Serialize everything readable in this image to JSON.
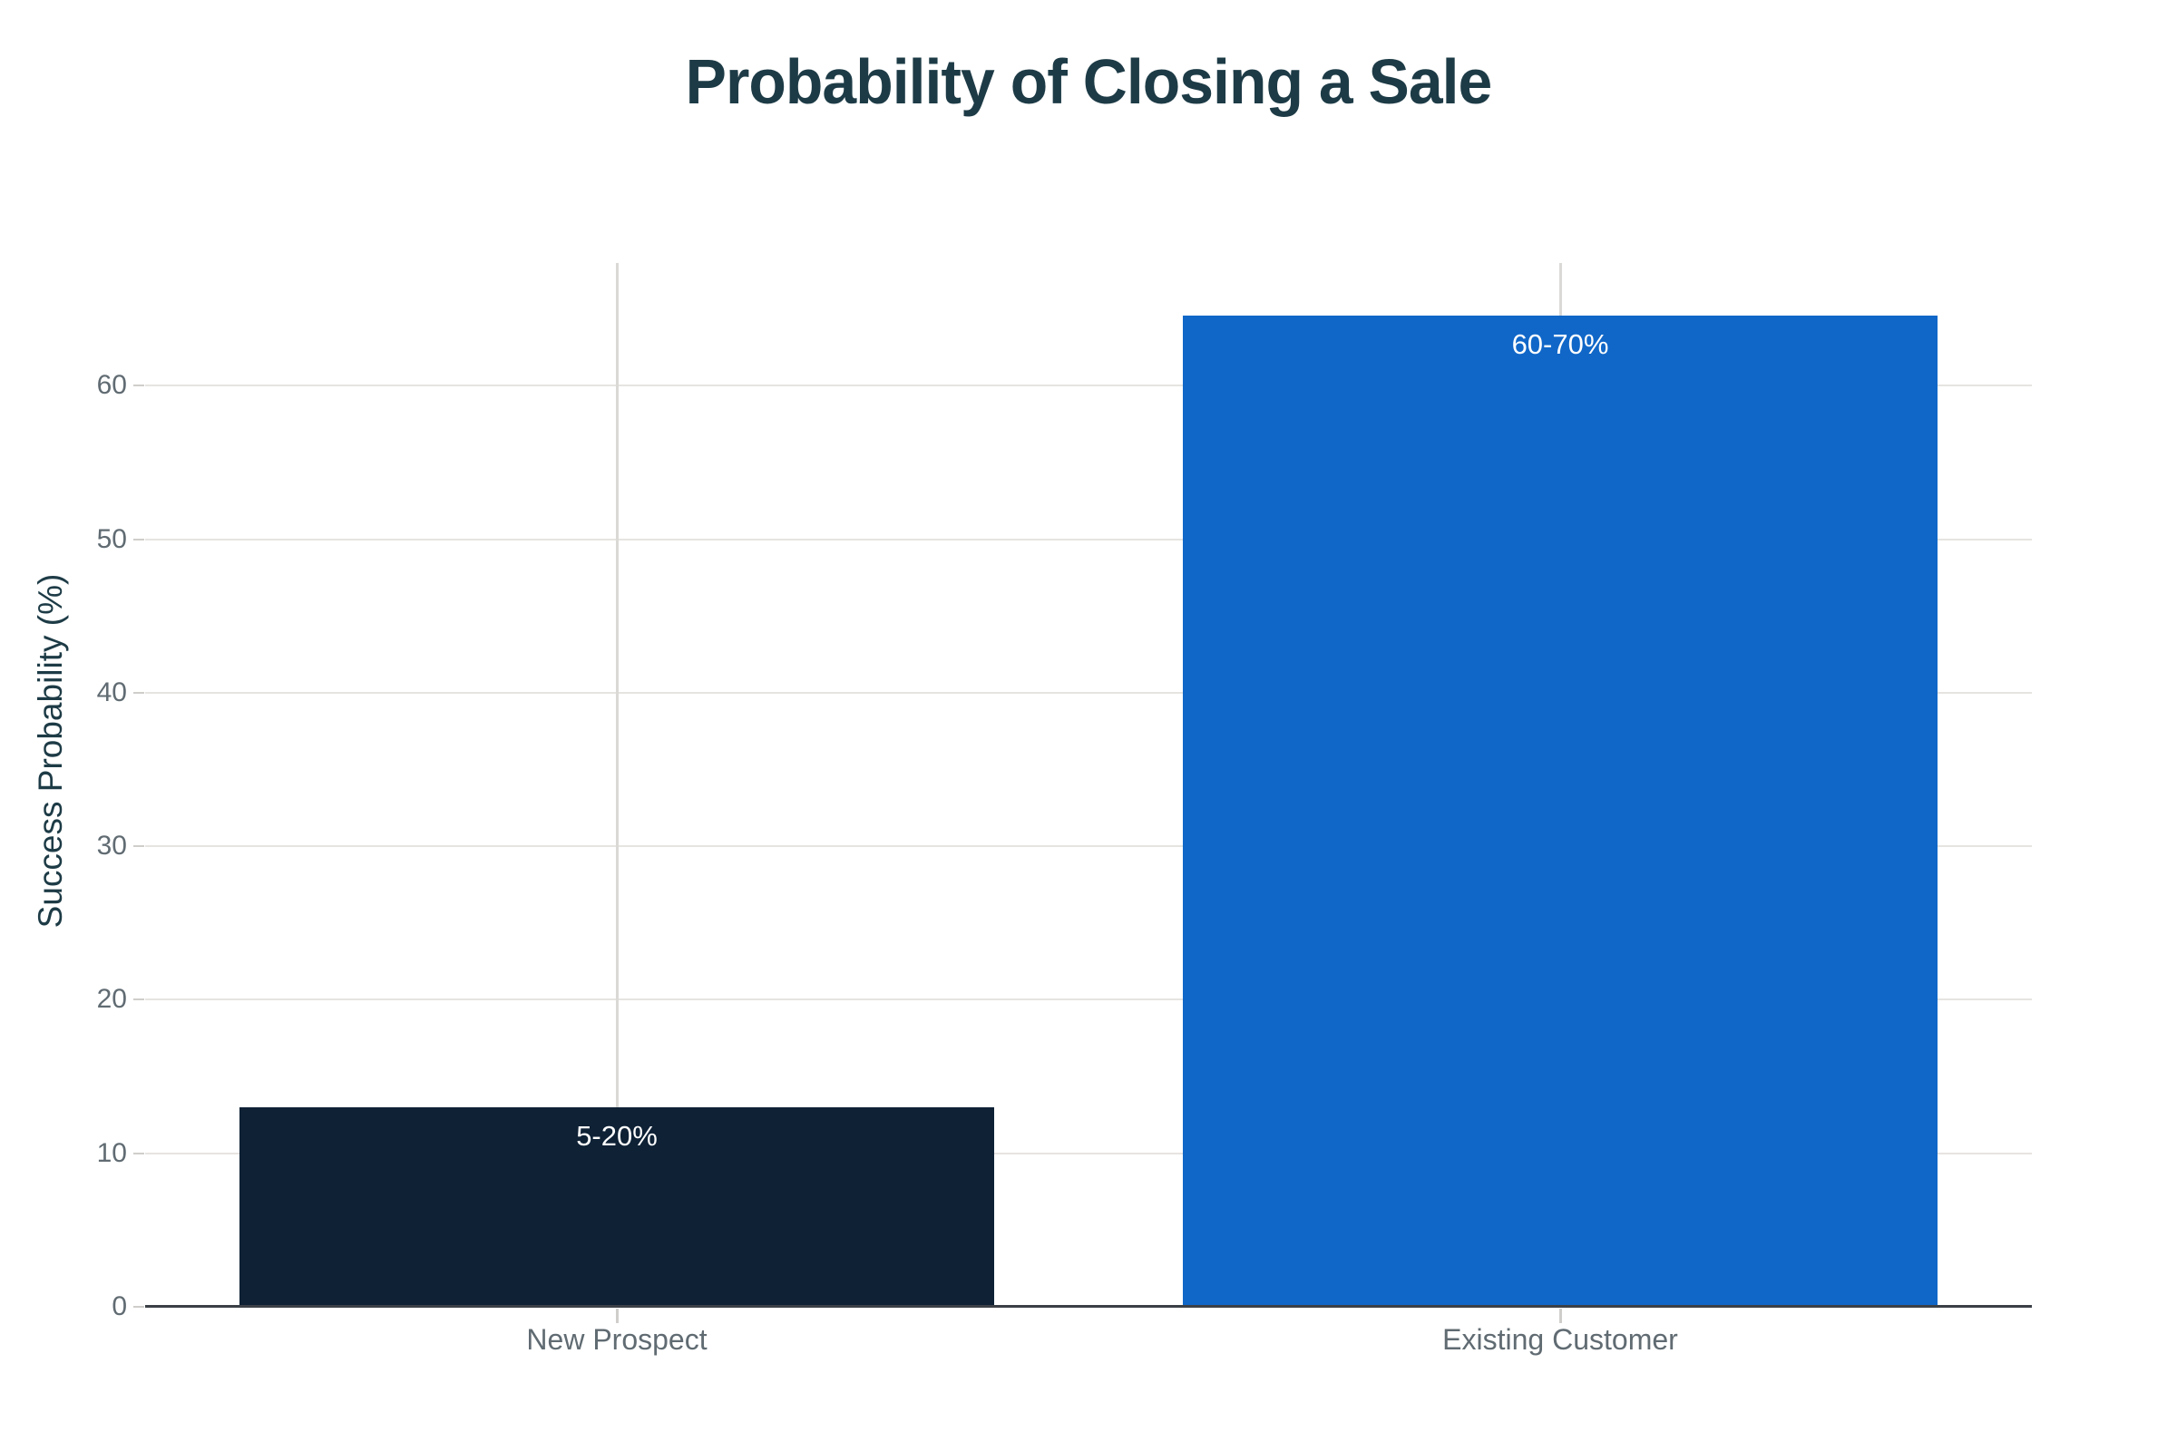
{
  "chart_data": {
    "type": "bar",
    "title": "Probability of Closing a Sale",
    "xlabel": "",
    "ylabel": "Success Probability (%)",
    "categories": [
      "New Prospect",
      "Existing Customer"
    ],
    "values": [
      13,
      64.6
    ],
    "bar_labels": [
      "5-20%",
      "60-70%"
    ],
    "bar_colors": [
      "#0e2135",
      "#1067c8"
    ],
    "yticks": [
      0,
      10,
      20,
      30,
      40,
      50,
      60
    ],
    "ylim": [
      0,
      68
    ],
    "grid": "horizontal gridlines at y ticks, vertical gridline at each category center",
    "legend": "none"
  },
  "colors": {
    "title_text": "#1d3b46",
    "axis_title_text": "#1d3b46",
    "tick_label_text": "#606b72",
    "bar_label_text": "#ffffff",
    "hgridline": "#e6e4e1",
    "vgridline": "#dbd9d6",
    "axis_line": "#3b4046",
    "background": "#ffffff"
  }
}
